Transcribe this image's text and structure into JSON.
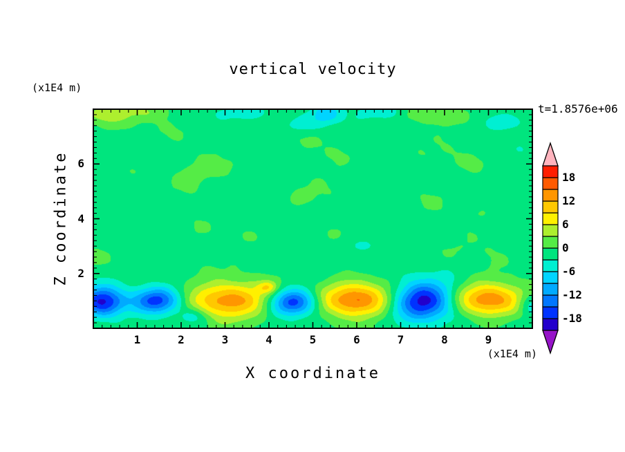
{
  "title": "vertical velocity",
  "timestamp": "t=1.8576e+06",
  "x_axis": {
    "label": "X coordinate",
    "unit": "(x1E4 m)",
    "ticks": [
      "1",
      "2",
      "3",
      "4",
      "5",
      "6",
      "7",
      "8",
      "9"
    ]
  },
  "y_axis": {
    "label": "Z coordinate",
    "unit": "(x1E4 m)",
    "ticks": [
      "2",
      "4",
      "6"
    ]
  },
  "colorbar": {
    "labels": [
      "18",
      "12",
      "6",
      "0",
      "-6",
      "-12",
      "-18"
    ],
    "label_values": [
      18,
      12,
      6,
      0,
      -6,
      -12,
      -18
    ]
  },
  "chart_data": {
    "type": "heatmap",
    "title": "vertical velocity",
    "xlabel": "X coordinate",
    "ylabel": "Z coordinate",
    "x_range": [
      0,
      10
    ],
    "z_range": [
      0,
      8
    ],
    "x_ticks": [
      1,
      2,
      3,
      4,
      5,
      6,
      7,
      8,
      9
    ],
    "z_ticks": [
      2,
      4,
      6
    ],
    "grid": false,
    "legend_position": "right-colorbar",
    "contour_levels": [
      -21,
      -18,
      -15,
      -12,
      -9,
      -6,
      -3,
      0,
      3,
      6,
      9,
      12,
      15,
      18,
      21
    ],
    "band_colors": [
      "#2200CC",
      "#0033FF",
      "#0077FF",
      "#00AAFF",
      "#00D4FF",
      "#00EFD2",
      "#00E57E",
      "#55EC46",
      "#ADEF2E",
      "#FFF000",
      "#FFC800",
      "#FF9600",
      "#FF5A00",
      "#FF1E00"
    ],
    "below_color": "#9614C8",
    "above_color": "#FFB4BE",
    "background_value": -1.0,
    "noise_amplitude": 0.8,
    "blobs": [
      {
        "x": 0.22,
        "z": 0.95,
        "amp": -18,
        "rx": 0.5,
        "rz": 0.55
      },
      {
        "x": 1.45,
        "z": 1.0,
        "amp": -16,
        "rx": 0.55,
        "rz": 0.48
      },
      {
        "x": 3.05,
        "z": 1.02,
        "amp": 15,
        "rx": 0.95,
        "rz": 0.62
      },
      {
        "x": 4.55,
        "z": 0.95,
        "amp": -16.5,
        "rx": 0.52,
        "rz": 0.48
      },
      {
        "x": 5.95,
        "z": 1.02,
        "amp": 16.5,
        "rx": 0.85,
        "rz": 0.6
      },
      {
        "x": 7.5,
        "z": 1.0,
        "amp": -19,
        "rx": 0.7,
        "rz": 0.68
      },
      {
        "x": 8.95,
        "z": 1.05,
        "amp": 15,
        "rx": 0.8,
        "rz": 0.58
      },
      {
        "x": 2.3,
        "z": 0.45,
        "amp": -5,
        "rx": 0.35,
        "rz": 0.3
      },
      {
        "x": 9.95,
        "z": 0.85,
        "amp": -6,
        "rx": 0.28,
        "rz": 0.4
      },
      {
        "x": 3.97,
        "z": 1.5,
        "amp": 7,
        "rx": 0.22,
        "rz": 0.22
      },
      {
        "x": 0.25,
        "z": 7.85,
        "amp": 6.5,
        "rx": 0.55,
        "rz": 0.4
      },
      {
        "x": 1.15,
        "z": 7.9,
        "amp": 3,
        "rx": 0.6,
        "rz": 0.3
      },
      {
        "x": 5.3,
        "z": 7.85,
        "amp": -8,
        "rx": 0.32,
        "rz": 0.35
      },
      {
        "x": 4.8,
        "z": 7.45,
        "amp": -4.5,
        "rx": 0.35,
        "rz": 0.28
      },
      {
        "x": 6.6,
        "z": 7.95,
        "amp": -5,
        "rx": 0.5,
        "rz": 0.32
      },
      {
        "x": 9.4,
        "z": 7.55,
        "amp": -5,
        "rx": 0.42,
        "rz": 0.3
      },
      {
        "x": 7.85,
        "z": 7.8,
        "amp": 3,
        "rx": 0.6,
        "rz": 0.35
      },
      {
        "x": 3.6,
        "z": 7.9,
        "amp": -4,
        "rx": 0.45,
        "rz": 0.3
      },
      {
        "x": 2.9,
        "z": 5.9,
        "amp": 2.2,
        "rx": 0.8,
        "rz": 0.4
      },
      {
        "x": 6.1,
        "z": 3.0,
        "amp": -3.5,
        "rx": 0.5,
        "rz": 0.35
      }
    ]
  }
}
